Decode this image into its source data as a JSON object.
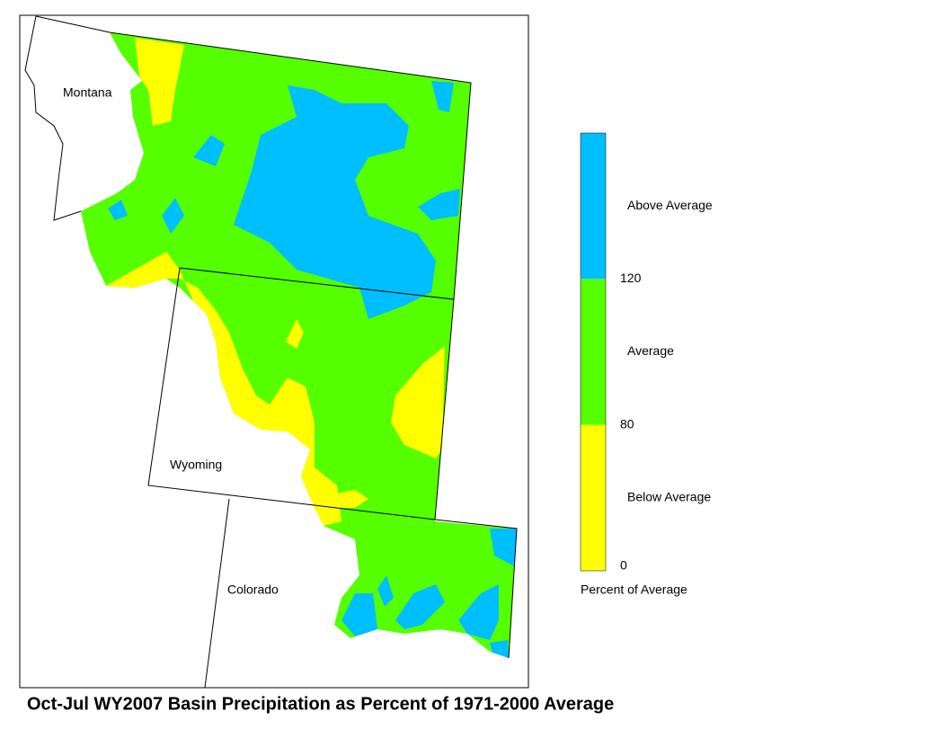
{
  "map": {
    "title": "Oct-Jul WY2007 Basin Precipitation as Percent of 1971-2000 Average",
    "state_labels": [
      "Montana",
      "Wyoming",
      "Colorado"
    ]
  },
  "legend": {
    "bands": [
      {
        "label": "Above Average",
        "color": "#00bfff"
      },
      {
        "label": "Average",
        "color": "#55ff00"
      },
      {
        "label": "Below Average",
        "color": "#ffff00"
      }
    ],
    "ticks": [
      120,
      80,
      0
    ],
    "caption": "Percent of Average"
  }
}
